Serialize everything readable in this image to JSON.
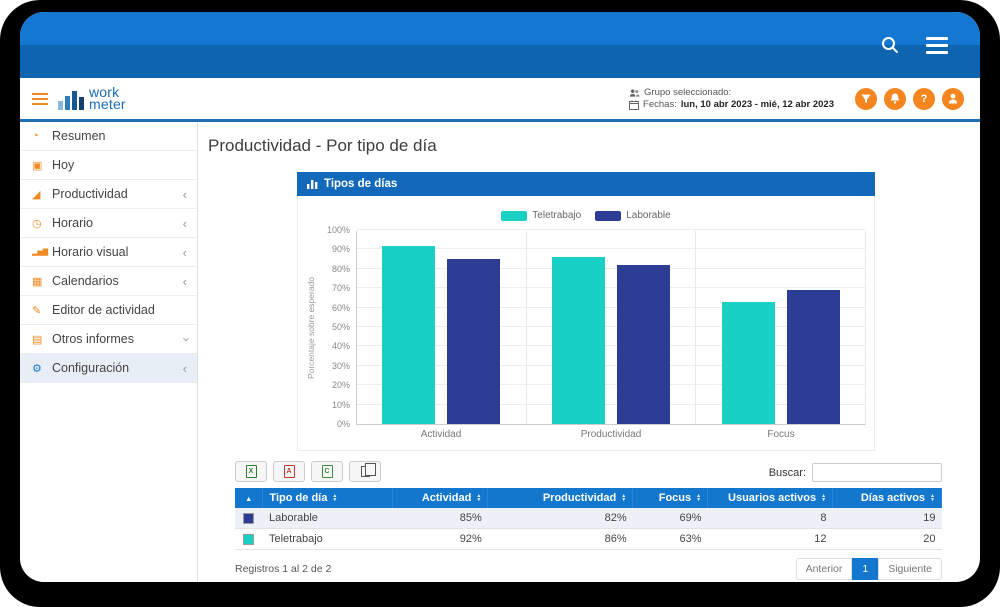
{
  "colors": {
    "primary_blue": "#1377cd",
    "panel_blue": "#1269ba",
    "brand_orange": "#f5861f",
    "teal": "#19d0c4",
    "navy": "#2d3d94"
  },
  "topbar": {
    "icons": [
      "search-icon",
      "menu-icon"
    ]
  },
  "header": {
    "logo_line1": "work",
    "logo_line2": "meter",
    "group_label": "Grupo seleccionado:",
    "dates_label": "Fechas:",
    "dates_value": "lun, 10 abr 2023 - mié, 12 abr 2023",
    "action_icons": [
      "filter-icon",
      "bell-icon",
      "help-icon",
      "user-icon"
    ]
  },
  "sidebar": {
    "items": [
      {
        "label": "Resumen",
        "icon": "dashboard",
        "chevron": ""
      },
      {
        "label": "Hoy",
        "icon": "calendar-check",
        "chevron": ""
      },
      {
        "label": "Productividad",
        "icon": "area-chart",
        "chevron": "left"
      },
      {
        "label": "Horario",
        "icon": "clock",
        "chevron": "left"
      },
      {
        "label": "Horario visual",
        "icon": "bar-chart",
        "chevron": "left"
      },
      {
        "label": "Calendarios",
        "icon": "calendar",
        "chevron": "left"
      },
      {
        "label": "Editor de actividad",
        "icon": "edit",
        "chevron": ""
      },
      {
        "label": "Otros informes",
        "icon": "table",
        "chevron": "down"
      },
      {
        "label": "Configuración",
        "icon": "gear",
        "chevron": "left",
        "active": true
      }
    ]
  },
  "page": {
    "title": "Productividad - Por tipo de día"
  },
  "panel": {
    "title": "Tipos de días"
  },
  "chart_data": {
    "type": "bar",
    "title": "Tipos de días",
    "categories": [
      "Actividad",
      "Productividad",
      "Focus"
    ],
    "series": [
      {
        "name": "Teletrabajo",
        "color": "#19d0c4",
        "values": [
          92,
          86,
          63
        ]
      },
      {
        "name": "Laborable",
        "color": "#2d3d94",
        "values": [
          85,
          82,
          69
        ]
      }
    ],
    "xlabel": "",
    "ylabel": "Porcentaje sobre esperado",
    "ylim": [
      0,
      100
    ],
    "ytick_step": 10,
    "ytick_suffix": "%",
    "legend_position": "top",
    "grid": true
  },
  "toolbar": {
    "export_buttons": [
      "excel",
      "pdf",
      "csv",
      "copy"
    ],
    "search_label": "Buscar:",
    "search_value": ""
  },
  "table": {
    "headers": [
      "",
      "Tipo de día",
      "Actividad",
      "Productividad",
      "Focus",
      "Usuarios activos",
      "Días activos"
    ],
    "rows": [
      {
        "color": "#2d3d94",
        "tipo": "Laborable",
        "actividad": "85%",
        "productividad": "82%",
        "focus": "69%",
        "usuarios": "8",
        "dias": "19"
      },
      {
        "color": "#19d0c4",
        "tipo": "Teletrabajo",
        "actividad": "92%",
        "productividad": "86%",
        "focus": "63%",
        "usuarios": "12",
        "dias": "20"
      }
    ],
    "records_text": "Registros 1 al 2 de 2",
    "pagination": {
      "prev": "Anterior",
      "page": "1",
      "next": "Siguiente"
    }
  }
}
